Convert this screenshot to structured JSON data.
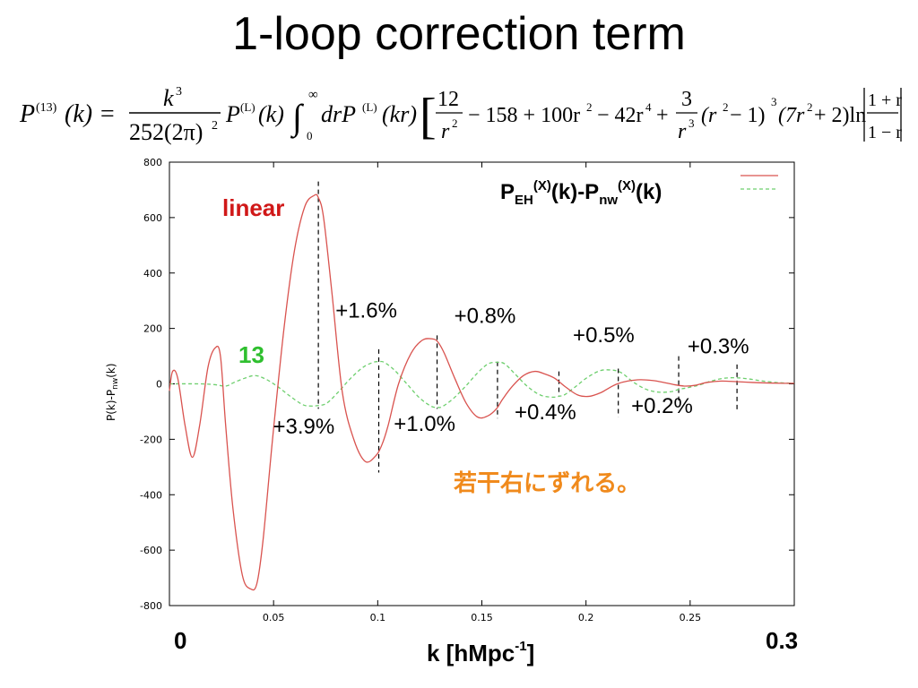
{
  "title": "1-loop correction term",
  "formula": {
    "lhs": "P",
    "lhs_sup": "(13)",
    "lhs_arg": "(k) =",
    "frac_num": "k",
    "frac_num_sup": "3",
    "frac_den": "252(2π)",
    "frac_den_sup": "2",
    "p_lin": "P",
    "p_lin_sup": "(L)",
    "p_lin_arg": "(k)",
    "int_sign": "∫",
    "int_upper": "∞",
    "int_lower": "0",
    "int_body": "drP",
    "int_body_sup": "(L)",
    "int_body_arg": "(kr)",
    "t1_num": "12",
    "t1_den": "r",
    "t1_den_sup": "2",
    "t2": "− 158 + 100r",
    "t2_sup": "2",
    "t3": "− 42r",
    "t3_sup": "4",
    "t4_plus": "+",
    "t4_num": "3",
    "t4_den": "r",
    "t4_den_sup": "3",
    "t5": "(r",
    "t5_sup": "2",
    "t5_rest": "− 1)",
    "t5_exp": "3",
    "t6": "(7r",
    "t6_sup": "2",
    "t6_rest": "+ 2)ln",
    "t7_num": "1 + r",
    "t7_den": "1 − r"
  },
  "chart_data": {
    "type": "line",
    "xlim": [
      0,
      0.3
    ],
    "ylim": [
      -800,
      800
    ],
    "x_ticks": [
      0.05,
      0.1,
      0.15,
      0.2,
      0.25
    ],
    "x_tick_labels": [
      "0.05",
      "0.1",
      "0.15",
      "0.2",
      "0.25"
    ],
    "y_ticks": [
      -800,
      -600,
      -400,
      -200,
      0,
      200,
      400,
      600,
      800
    ],
    "y_tick_labels": [
      "-800",
      "-600",
      "-400",
      "-200",
      "0",
      "200",
      "400",
      "600",
      "800"
    ],
    "x_edge_labels": {
      "left": "0",
      "right": "0.3"
    },
    "xlabel": {
      "main": "k [hMpc",
      "sup": "-1",
      "end": "]"
    },
    "ylabel": {
      "a": "P(k)-P",
      "sub": "nw",
      "b": "(k)"
    },
    "legend": {
      "p": "P",
      "sub1": "EH",
      "sup1": "(X)",
      "mid": "(k)-P",
      "sub2": "nw",
      "sup2": "(X)",
      "end": "(k)",
      "position": "top-right"
    },
    "grid": false,
    "series": [
      {
        "name": "linear",
        "color": "#d9534f",
        "style": "solid",
        "x": [
          0,
          0.0015,
          0.004,
          0.0075,
          0.011,
          0.0145,
          0.0185,
          0.022,
          0.0245,
          0.027,
          0.0305,
          0.035,
          0.039,
          0.042,
          0.045,
          0.0495,
          0.055,
          0.06,
          0.065,
          0.0695,
          0.0715,
          0.074,
          0.078,
          0.083,
          0.0885,
          0.094,
          0.099,
          0.102,
          0.105,
          0.11,
          0.116,
          0.1215,
          0.1265,
          0.129,
          0.132,
          0.137,
          0.1425,
          0.148,
          0.153,
          0.157,
          0.16,
          0.1645,
          0.17,
          0.1755,
          0.1805,
          0.185,
          0.19,
          0.196,
          0.2015,
          0.207,
          0.211,
          0.215,
          0.22,
          0.226,
          0.232,
          0.2375,
          0.2425,
          0.2475,
          0.2525,
          0.258,
          0.265,
          0.272,
          0.28,
          0.288,
          0.295,
          0.3
        ],
        "y": [
          -25,
          45,
          20,
          -150,
          -265,
          -150,
          60,
          130,
          100,
          -150,
          -450,
          -690,
          -740,
          -720,
          -560,
          -200,
          200,
          480,
          640,
          680,
          672,
          600,
          330,
          -30,
          -200,
          -280,
          -260,
          -220,
          -150,
          0,
          110,
          158,
          162,
          150,
          110,
          20,
          -70,
          -120,
          -115,
          -90,
          -55,
          -10,
          30,
          45,
          35,
          20,
          -10,
          -40,
          -45,
          -32,
          -15,
          0,
          10,
          15,
          12,
          5,
          -3,
          -8,
          -5,
          5,
          10,
          8,
          5,
          3,
          2,
          2
        ]
      },
      {
        "name": "13",
        "color": "#6ecf6e",
        "style": "dashed",
        "x": [
          0,
          0.015,
          0.022,
          0.027,
          0.031,
          0.036,
          0.041,
          0.046,
          0.052,
          0.058,
          0.064,
          0.068,
          0.0715,
          0.0755,
          0.081,
          0.087,
          0.093,
          0.098,
          0.1005,
          0.103,
          0.108,
          0.114,
          0.12,
          0.1255,
          0.1285,
          0.131,
          0.136,
          0.142,
          0.148,
          0.153,
          0.1575,
          0.161,
          0.166,
          0.172,
          0.178,
          0.1835,
          0.187,
          0.19,
          0.195,
          0.201,
          0.207,
          0.212,
          0.2155,
          0.218,
          0.223,
          0.229,
          0.235,
          0.241,
          0.2445,
          0.248,
          0.254,
          0.26,
          0.266,
          0.272,
          0.278,
          0.285,
          0.293,
          0.3
        ],
        "y": [
          0,
          0,
          -3,
          -8,
          5,
          20,
          30,
          18,
          -10,
          -45,
          -75,
          -80,
          -78,
          -70,
          -30,
          20,
          60,
          78,
          80,
          78,
          50,
          0,
          -50,
          -80,
          -85,
          -82,
          -55,
          -10,
          40,
          72,
          78,
          72,
          35,
          -10,
          -40,
          -48,
          -45,
          -38,
          -10,
          25,
          48,
          50,
          45,
          35,
          5,
          -20,
          -30,
          -28,
          -20,
          -15,
          -5,
          10,
          20,
          22,
          18,
          10,
          4,
          2
        ]
      }
    ],
    "series_labels": [
      {
        "text": "linear",
        "color": "#d01818"
      },
      {
        "text": "13",
        "color": "#2fbf2f"
      }
    ],
    "markers": [
      {
        "x": 0.0715,
        "y_top": 730,
        "y_bot": -90
      },
      {
        "x": 0.1005,
        "y_top": 125,
        "y_bot": -320
      },
      {
        "x": 0.1285,
        "y_top": 175,
        "y_bot": -90
      },
      {
        "x": 0.1575,
        "y_top": 80,
        "y_bot": -125
      },
      {
        "x": 0.187,
        "y_top": 45,
        "y_bot": -45
      },
      {
        "x": 0.2155,
        "y_top": 55,
        "y_bot": -120
      },
      {
        "x": 0.2445,
        "y_top": 100,
        "y_bot": -60
      },
      {
        "x": 0.2725,
        "y_top": 70,
        "y_bot": -100
      }
    ],
    "annotations": [
      {
        "text": "+3.9%",
        "x": 0.0645,
        "y": -180
      },
      {
        "text": "+1.6%",
        "x": 0.0945,
        "y": 240
      },
      {
        "text": "+1.0%",
        "x": 0.1225,
        "y": -170
      },
      {
        "text": "+0.8%",
        "x": 0.1515,
        "y": 220
      },
      {
        "text": "+0.4%",
        "x": 0.1805,
        "y": -128
      },
      {
        "text": "+0.5%",
        "x": 0.2085,
        "y": 150
      },
      {
        "text": "+0.2%",
        "x": 0.2365,
        "y": -105
      },
      {
        "text": "+0.3%",
        "x": 0.2635,
        "y": 110
      }
    ],
    "note": "若干右にずれる。"
  }
}
